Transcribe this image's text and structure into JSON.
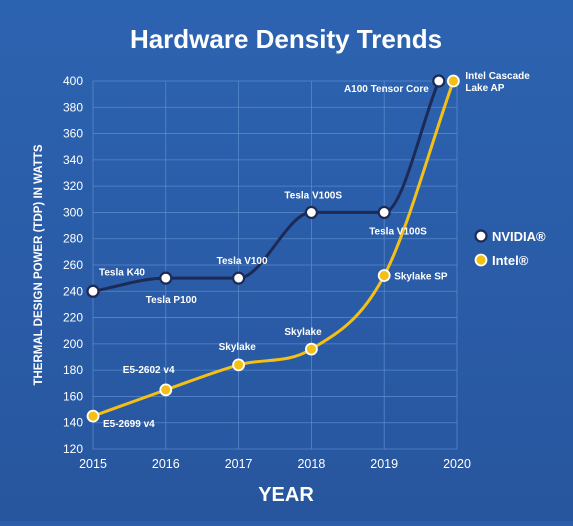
{
  "chart_data": {
    "type": "line",
    "title": "Hardware Density Trends",
    "xlabel": "YEAR",
    "ylabel": "THERMAL DESIGN POWER (TDP) IN WATTS",
    "xlim": [
      2015,
      2020
    ],
    "ylim": [
      120,
      400
    ],
    "x_ticks": [
      "2015",
      "2016",
      "2017",
      "2018",
      "2019",
      "2020"
    ],
    "y_ticks": [
      "120",
      "140",
      "160",
      "180",
      "200",
      "220",
      "240",
      "260",
      "280",
      "300",
      "320",
      "340",
      "360",
      "380",
      "400"
    ],
    "grid": true,
    "legend_position": "right",
    "series": [
      {
        "name": "NVIDIA®",
        "color": "#1d2a55",
        "points": [
          {
            "x": 2015.0,
            "y": 240,
            "label": "Tesla K40"
          },
          {
            "x": 2016.0,
            "y": 250,
            "label": "Tesla P100"
          },
          {
            "x": 2017.0,
            "y": 250,
            "label": "Tesla V100"
          },
          {
            "x": 2018.0,
            "y": 300,
            "label": "Tesla V100S"
          },
          {
            "x": 2019.0,
            "y": 300,
            "label": "Tesla V100S"
          },
          {
            "x": 2019.75,
            "y": 400,
            "label": "A100 Tensor Core"
          }
        ]
      },
      {
        "name": "Intel®",
        "color": "#f5c015",
        "points": [
          {
            "x": 2015.0,
            "y": 145,
            "label": "E5-2699 v4"
          },
          {
            "x": 2016.0,
            "y": 165,
            "label": "E5-2602 v4"
          },
          {
            "x": 2017.0,
            "y": 184,
            "label": "Skylake"
          },
          {
            "x": 2018.0,
            "y": 196,
            "label": "Skylake"
          },
          {
            "x": 2019.0,
            "y": 252,
            "label": "Skylake SP"
          },
          {
            "x": 2019.95,
            "y": 400,
            "label": "Intel Cascade Lake AP"
          }
        ]
      }
    ]
  }
}
